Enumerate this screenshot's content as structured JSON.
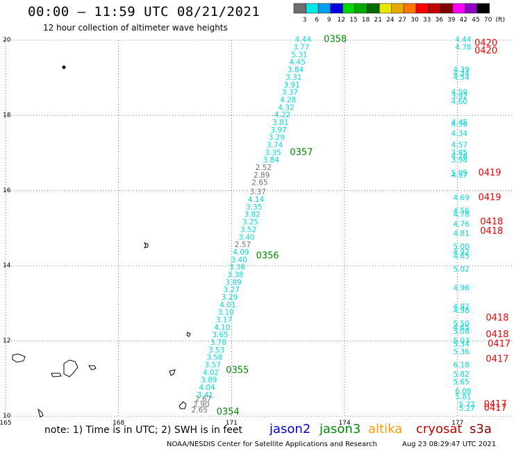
{
  "title": "00:00 – 11:59 UTC 08/21/2021",
  "subtitle": "12 hour collection of altimeter wave heights",
  "colorbar": {
    "labels": [
      "3",
      "6",
      "9",
      "12",
      "15",
      "18",
      "21",
      "24",
      "27",
      "30",
      "33",
      "36",
      "39",
      "42",
      "45",
      "70",
      "(ft)"
    ],
    "colors": [
      "#6e6e6e",
      "#00e8e8",
      "#00a0f0",
      "#0000e0",
      "#00d800",
      "#00a800",
      "#006a00",
      "#e8e800",
      "#e8a800",
      "#ff7800",
      "#ff0000",
      "#c00000",
      "#800000",
      "#ff00ff",
      "#9000c0",
      "#000000"
    ]
  },
  "footer": {
    "note": "note:  1) Time is in UTC;  2) SWH is in feet",
    "missions": [
      {
        "name": "jason2",
        "color": "#0000cc"
      },
      {
        "name": "jason3",
        "color": "#008800"
      },
      {
        "name": "altika",
        "color": "#ff9900"
      },
      {
        "name": "cryosat",
        "color": "#cc0000"
      },
      {
        "name": "s3a",
        "color": "#8b0000"
      }
    ],
    "credit": "NOAA/NESDIS Center for Satellite Applications and Research",
    "timestamp": "Aug 23 08:29:47 UTC 2021"
  },
  "chart_data": {
    "type": "scatter",
    "xlim": [
      165,
      178.5
    ],
    "ylim": [
      10,
      20
    ],
    "xticks": [
      "165",
      "168",
      "171",
      "174",
      "177"
    ],
    "yticks": [
      "10",
      "12",
      "14",
      "16",
      "18",
      "20"
    ],
    "grid": true,
    "series": [
      {
        "color": "#00d8d8",
        "points": [
          [
            172.9,
            19.95,
            "4.44"
          ],
          [
            172.85,
            19.75,
            "3.77"
          ],
          [
            172.8,
            19.55,
            "5.31"
          ],
          [
            172.75,
            19.35,
            "4.45"
          ],
          [
            172.7,
            19.15,
            "3.84"
          ],
          [
            172.65,
            18.95,
            "3.31"
          ],
          [
            172.6,
            18.75,
            "3.91"
          ],
          [
            172.55,
            18.55,
            "3.37"
          ],
          [
            172.5,
            18.35,
            "4.28"
          ],
          [
            172.45,
            18.15,
            "4.32"
          ],
          [
            172.35,
            17.95,
            "4.22"
          ],
          [
            172.3,
            17.75,
            "3.81"
          ],
          [
            172.25,
            17.55,
            "3.97"
          ],
          [
            172.2,
            17.35,
            "3.29"
          ],
          [
            172.15,
            17.15,
            "3.74"
          ],
          [
            172.1,
            16.95,
            "3.35"
          ],
          [
            172.05,
            16.75,
            "3.84"
          ],
          [
            171.65,
            15.7,
            "4.14"
          ],
          [
            171.6,
            15.5,
            "3.35"
          ],
          [
            171.55,
            15.3,
            "3.82"
          ],
          [
            171.5,
            15.1,
            "3.25"
          ],
          [
            171.45,
            14.9,
            "3.52"
          ],
          [
            171.4,
            14.7,
            "3.40"
          ],
          [
            171.25,
            14.3,
            "4.09"
          ],
          [
            171.2,
            14.1,
            "3.40"
          ],
          [
            171.15,
            13.9,
            "3.36"
          ],
          [
            171.1,
            13.7,
            "3.38"
          ],
          [
            171.05,
            13.5,
            "3.89"
          ],
          [
            171.0,
            13.3,
            "3.27"
          ],
          [
            170.95,
            13.1,
            "3.29"
          ],
          [
            170.9,
            12.9,
            "4.01"
          ],
          [
            170.85,
            12.7,
            "3.10"
          ],
          [
            170.8,
            12.5,
            "3.17"
          ],
          [
            170.75,
            12.3,
            "4.10"
          ],
          [
            170.7,
            12.1,
            "3.65"
          ],
          [
            170.65,
            11.9,
            "3.78"
          ],
          [
            170.6,
            11.7,
            "3.53"
          ],
          [
            170.55,
            11.5,
            "3.58"
          ],
          [
            170.5,
            11.3,
            "3.57"
          ],
          [
            170.45,
            11.1,
            "4.02"
          ],
          [
            170.4,
            10.9,
            "3.89"
          ],
          [
            170.35,
            10.7,
            "4.04"
          ],
          [
            170.3,
            10.5,
            "3.41"
          ],
          [
            177.15,
            19.95,
            "4.44"
          ],
          [
            177.15,
            19.75,
            "4.78"
          ],
          [
            177.1,
            19.15,
            "4.39"
          ],
          [
            177.1,
            19.05,
            "4.34"
          ],
          [
            177.1,
            18.95,
            "4.54"
          ],
          [
            177.05,
            18.55,
            "4.59"
          ],
          [
            177.05,
            18.45,
            "3.92"
          ],
          [
            177.05,
            18.3,
            "4.60"
          ],
          [
            177.05,
            17.75,
            "4.45"
          ],
          [
            177.05,
            17.7,
            "4.36"
          ],
          [
            177.05,
            17.45,
            "4.34"
          ],
          [
            177.05,
            17.15,
            "4.57"
          ],
          [
            177.05,
            16.95,
            "3.85"
          ],
          [
            177.05,
            16.85,
            "4.26"
          ],
          [
            177.05,
            16.75,
            "3.98"
          ],
          [
            177.05,
            16.4,
            "5.09"
          ],
          [
            177.05,
            16.35,
            "4.37"
          ],
          [
            177.1,
            15.75,
            "4.69"
          ],
          [
            177.1,
            15.4,
            "4.56"
          ],
          [
            177.1,
            15.3,
            "4.78"
          ],
          [
            177.1,
            15.05,
            "4.76"
          ],
          [
            177.1,
            14.8,
            "4.81"
          ],
          [
            177.1,
            14.45,
            "5.00"
          ],
          [
            177.1,
            14.3,
            "4.92"
          ],
          [
            177.1,
            14.2,
            "4.65"
          ],
          [
            177.1,
            13.85,
            "5.02"
          ],
          [
            177.1,
            13.35,
            "4.96"
          ],
          [
            177.1,
            12.85,
            "4.92"
          ],
          [
            177.1,
            12.75,
            "4.98"
          ],
          [
            177.1,
            12.4,
            "5.50"
          ],
          [
            177.1,
            12.3,
            "4.65"
          ],
          [
            177.1,
            12.2,
            "5.08"
          ],
          [
            177.1,
            11.95,
            "5.03"
          ],
          [
            177.1,
            11.85,
            "5.34"
          ],
          [
            177.1,
            11.65,
            "5.36"
          ],
          [
            177.1,
            11.3,
            "6.18"
          ],
          [
            177.1,
            11.05,
            "5.82"
          ],
          [
            177.1,
            10.85,
            "5.65"
          ],
          [
            177.15,
            10.6,
            "6.08"
          ],
          [
            177.15,
            10.45,
            "5.81"
          ],
          [
            177.25,
            10.25,
            "5.72"
          ],
          [
            177.25,
            10.15,
            "5.27"
          ]
        ]
      },
      {
        "color": "#707070",
        "points": [
          [
            171.85,
            16.55,
            "2.52"
          ],
          [
            171.8,
            16.35,
            "2.89"
          ],
          [
            171.75,
            16.15,
            "2.65"
          ],
          [
            171.7,
            15.9,
            "3.37"
          ],
          [
            171.3,
            14.5,
            "2.57"
          ],
          [
            170.25,
            10.4,
            "2.67"
          ],
          [
            170.2,
            10.25,
            "2.90"
          ],
          [
            170.15,
            10.1,
            "2.65"
          ]
        ]
      }
    ],
    "track_labels": [
      {
        "text": "0358",
        "x": 173.45,
        "y": 19.95,
        "color": "#008800"
      },
      {
        "text": "0357",
        "x": 172.55,
        "y": 16.95,
        "color": "#008800"
      },
      {
        "text": "0356",
        "x": 171.65,
        "y": 14.2,
        "color": "#008800"
      },
      {
        "text": "0355",
        "x": 170.85,
        "y": 11.15,
        "color": "#008800"
      },
      {
        "text": "0354",
        "x": 170.6,
        "y": 10.05,
        "color": "#008800"
      },
      {
        "text": "0420",
        "x": 177.45,
        "y": 19.85,
        "color": "#ee0000"
      },
      {
        "text": "0420",
        "x": 177.45,
        "y": 19.65,
        "color": "#ee0000"
      },
      {
        "text": "0419",
        "x": 177.55,
        "y": 16.4,
        "color": "#ee0000"
      },
      {
        "text": "0419",
        "x": 177.55,
        "y": 15.75,
        "color": "#ee0000"
      },
      {
        "text": "0418",
        "x": 177.6,
        "y": 15.1,
        "color": "#ee0000"
      },
      {
        "text": "0418",
        "x": 177.6,
        "y": 14.85,
        "color": "#ee0000"
      },
      {
        "text": "0418",
        "x": 177.75,
        "y": 12.55,
        "color": "#ee0000"
      },
      {
        "text": "0418",
        "x": 177.75,
        "y": 12.1,
        "color": "#ee0000"
      },
      {
        "text": "0417",
        "x": 177.8,
        "y": 11.85,
        "color": "#ee0000"
      },
      {
        "text": "0417",
        "x": 177.75,
        "y": 11.45,
        "color": "#ee0000"
      },
      {
        "text": "0417",
        "x": 177.7,
        "y": 10.25,
        "color": "#ee0000"
      },
      {
        "text": "0417",
        "x": 177.7,
        "y": 10.15,
        "color": "#ee0000"
      }
    ]
  }
}
